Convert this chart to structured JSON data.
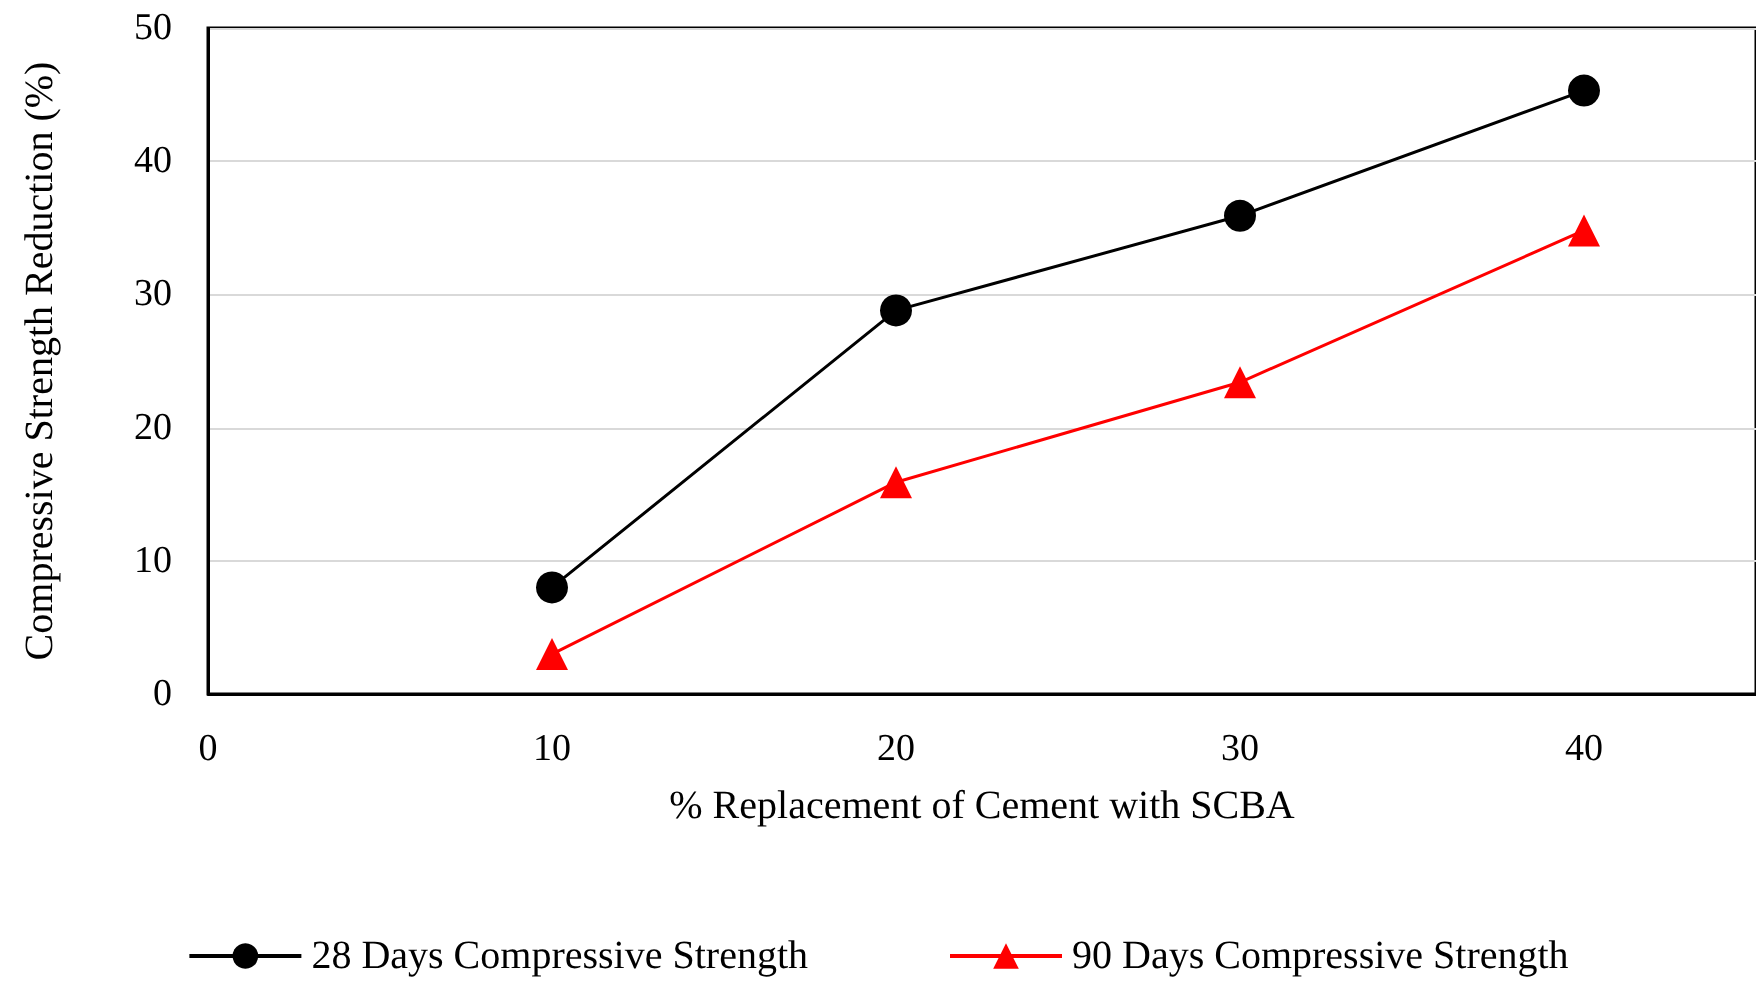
{
  "chart_data": {
    "type": "line",
    "xlabel": "% Replacement of Cement with SCBA",
    "ylabel": "Compressive Strength Reduction (%)",
    "x": [
      10,
      20,
      30,
      40
    ],
    "series": [
      {
        "name": "28 Days Compressive Strength",
        "color": "#000000",
        "marker": "circle",
        "values": [
          8,
          28.8,
          35.9,
          45.3
        ]
      },
      {
        "name": "90 Days Compressive Strength",
        "color": "#ff0000",
        "marker": "triangle",
        "values": [
          3,
          15.9,
          23.4,
          34.8
        ]
      }
    ],
    "xlim": [
      0,
      45
    ],
    "xticks": [
      0,
      10,
      20,
      30,
      40
    ],
    "ylim": [
      0,
      50
    ],
    "yticks": [
      0,
      10,
      20,
      30,
      40,
      50
    ],
    "grid": "y",
    "legend": "bottom",
    "line_style": "solid"
  }
}
